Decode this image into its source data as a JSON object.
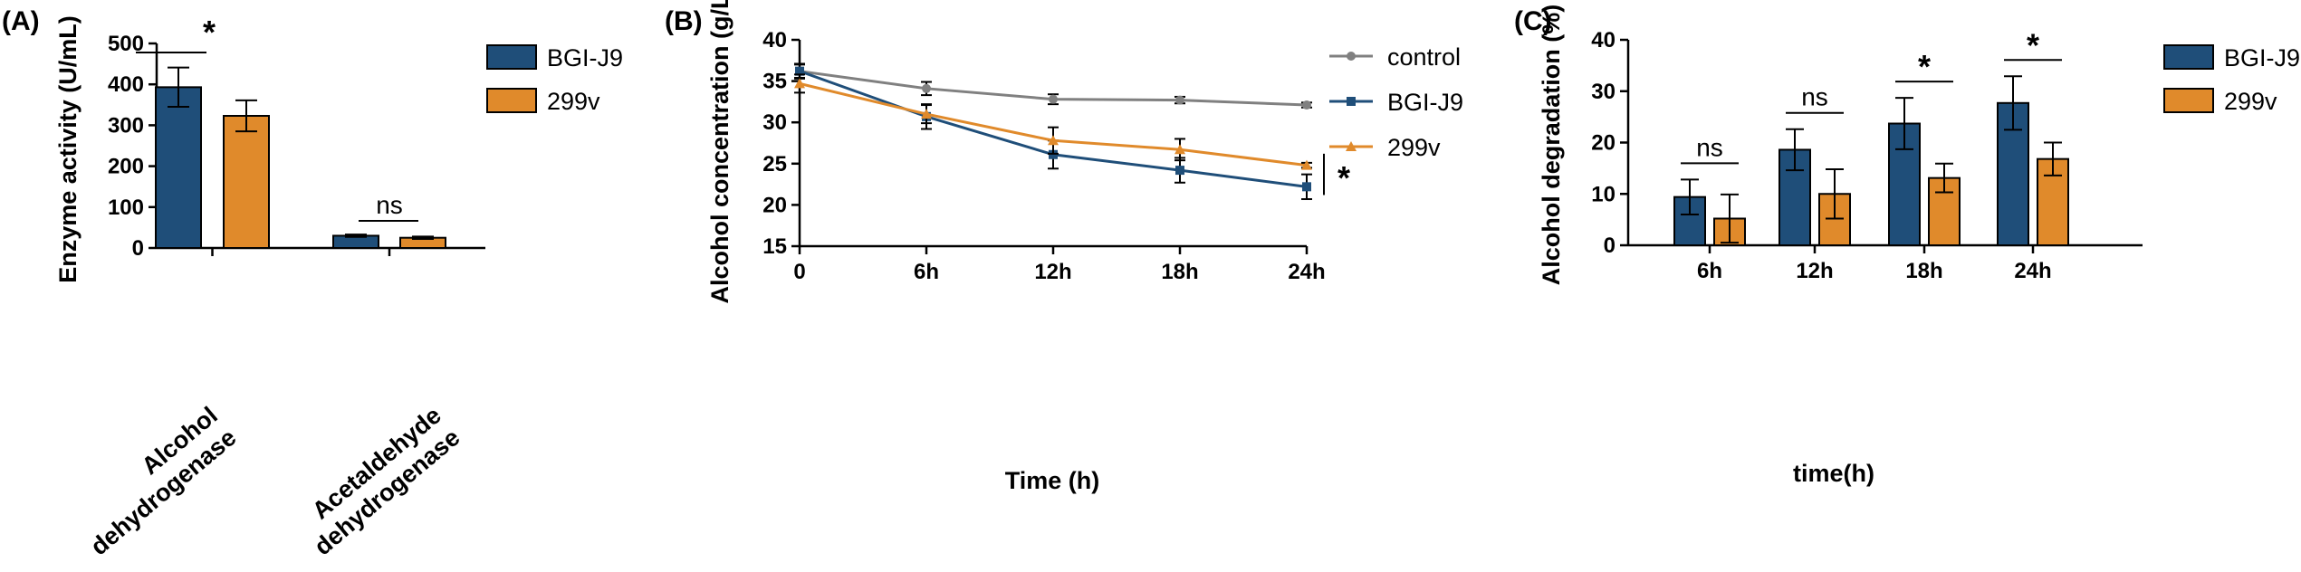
{
  "colors": {
    "bgi": "#1f4e79",
    "v299": "#e08a2b",
    "control": "#808080",
    "axis": "#000000"
  },
  "chart_data": [
    {
      "panel": "(A)",
      "type": "bar",
      "ylabel": "Enzyme activity (U/mL)",
      "ylim": [
        0,
        500
      ],
      "yticks": [
        "0",
        "100",
        "200",
        "300",
        "400",
        "500"
      ],
      "category_labels": [
        {
          "line1": "Alcohol",
          "line2": "dehydrogenase"
        },
        {
          "line1": "Acetaldehyde",
          "line2": "dehydrogenase"
        }
      ],
      "series": [
        {
          "name": "BGI-J9",
          "values": [
            393,
            30
          ],
          "errors": [
            48,
            3
          ]
        },
        {
          "name": "299v",
          "values": [
            323,
            25
          ],
          "errors": [
            38,
            3
          ]
        }
      ],
      "significance": [
        "*",
        "ns"
      ],
      "legend": [
        "BGI-J9",
        "299v"
      ]
    },
    {
      "panel": "(B)",
      "type": "line",
      "xlabel": "Time (h)",
      "ylabel": "Alcohol concentration (g/L)",
      "ylim": [
        15,
        40
      ],
      "yticks": [
        "15",
        "20",
        "25",
        "30",
        "35",
        "40"
      ],
      "categories": [
        "0",
        "6h",
        "12h",
        "18h",
        "24h"
      ],
      "series": [
        {
          "name": "control",
          "values": [
            36.2,
            34.1,
            32.8,
            32.7,
            32.1
          ],
          "errors": [
            0.8,
            0.8,
            0.6,
            0.4,
            0.3
          ]
        },
        {
          "name": "BGI-J9",
          "values": [
            36.2,
            30.7,
            26.1,
            24.2,
            22.2
          ],
          "errors": [
            0.9,
            1.5,
            1.7,
            1.5,
            1.5
          ]
        },
        {
          "name": "299v",
          "values": [
            34.7,
            31.0,
            27.8,
            26.7,
            24.8
          ],
          "errors": [
            1.1,
            1.1,
            1.6,
            1.3,
            0.3
          ]
        }
      ],
      "significance": [
        "*"
      ],
      "legend": [
        "control",
        "BGI-J9",
        "299v"
      ]
    },
    {
      "panel": "(C)",
      "type": "bar",
      "xlabel": "time(h)",
      "ylabel": "Alcohol degradation (%)",
      "ylim": [
        0,
        40
      ],
      "yticks": [
        "0",
        "10",
        "20",
        "30",
        "40"
      ],
      "categories": [
        "6h",
        "12h",
        "18h",
        "24h"
      ],
      "series": [
        {
          "name": "BGI-J9",
          "values": [
            9.4,
            18.6,
            23.7,
            27.7
          ],
          "errors": [
            3.4,
            4.0,
            5.0,
            5.2
          ]
        },
        {
          "name": "299v",
          "values": [
            5.2,
            10.0,
            13.1,
            16.8
          ],
          "errors": [
            4.7,
            4.8,
            2.8,
            3.2
          ]
        }
      ],
      "significance": [
        "ns",
        "ns",
        "*",
        "*"
      ],
      "legend": [
        "BGI-J9",
        "299v"
      ]
    }
  ]
}
